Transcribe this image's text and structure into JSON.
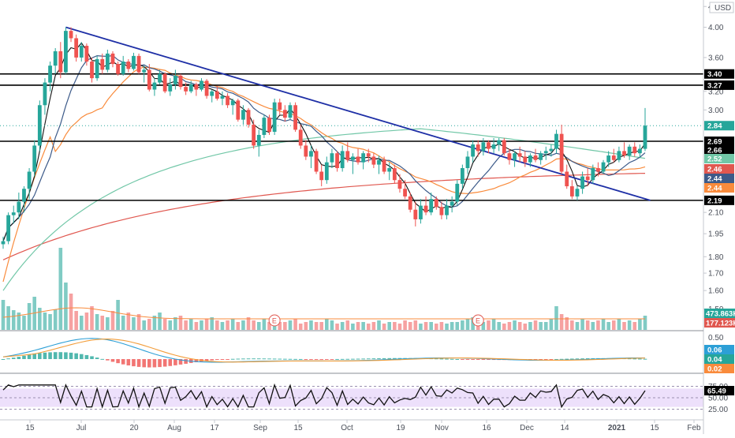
{
  "currency": "USD",
  "colors": {
    "up": "#26a69a",
    "down": "#ef5350",
    "vol_up": "#80cbc4",
    "vol_down": "#f6a1a1",
    "ma_dark": "#3c5a89",
    "ma_orange": "#f98b3c",
    "ma_red": "#e0574f",
    "ma_green": "#71c7a7",
    "ma_black": "#111111",
    "trendline": "#1e2fa6",
    "rsi_band": "#ede0fb",
    "macd_line": "#2c9fd6",
    "signal_line": "#f29d3a"
  },
  "chart_data": {
    "type": "candlestick",
    "panels": {
      "price": {
        "y_ticks": [
          "4.",
          "4.00",
          "3.60",
          "3.20",
          "3.00",
          "2.10",
          "1.95",
          "1.80",
          "1.70",
          "1.60",
          "1.50"
        ],
        "price_tags": [
          {
            "label": "3.40",
            "value": 3.4,
            "style": "black"
          },
          {
            "label": "3.27",
            "value": 3.27,
            "style": "black"
          },
          {
            "label": "2.84",
            "value": 2.84,
            "style": "up"
          },
          {
            "label": "2.69",
            "value": 2.69,
            "style": "black"
          },
          {
            "label": "2.66",
            "value": 2.66,
            "style": "black"
          },
          {
            "label": "2.52",
            "value": 2.52,
            "style": "green"
          },
          {
            "label": "2.46",
            "value": 2.46,
            "style": "red"
          },
          {
            "label": "2.44",
            "value": 2.44,
            "style": "navy"
          },
          {
            "label": "2.44",
            "value": 2.44,
            "style": "orange"
          },
          {
            "label": "2.19",
            "value": 2.19,
            "style": "black"
          }
        ],
        "horizontal_levels": [
          3.4,
          3.27,
          2.69,
          2.19
        ],
        "trendline": {
          "from": {
            "bar": 12,
            "price": 4.0
          },
          "to": {
            "bar": 124,
            "price": 2.19
          }
        },
        "candles": [
          [
            1.88,
            1.93,
            1.85,
            1.9
          ],
          [
            1.9,
            2.1,
            1.88,
            2.08
          ],
          [
            2.08,
            2.15,
            2.02,
            2.1
          ],
          [
            2.1,
            2.25,
            2.05,
            2.18
          ],
          [
            2.18,
            2.3,
            2.1,
            2.28
          ],
          [
            2.28,
            2.45,
            2.2,
            2.42
          ],
          [
            2.42,
            2.7,
            2.38,
            2.65
          ],
          [
            2.65,
            3.1,
            2.6,
            3.05
          ],
          [
            3.05,
            3.35,
            2.95,
            3.3
          ],
          [
            3.3,
            3.55,
            3.2,
            3.5
          ],
          [
            3.5,
            3.72,
            3.4,
            3.68
          ],
          [
            3.68,
            3.8,
            3.35,
            3.42
          ],
          [
            3.42,
            4.0,
            3.4,
            3.95
          ],
          [
            3.95,
            4.0,
            3.8,
            3.85
          ],
          [
            3.85,
            3.9,
            3.55,
            3.6
          ],
          [
            3.6,
            3.8,
            3.55,
            3.75
          ],
          [
            3.75,
            3.78,
            3.5,
            3.55
          ],
          [
            3.55,
            3.6,
            3.3,
            3.35
          ],
          [
            3.35,
            3.62,
            3.32,
            3.58
          ],
          [
            3.58,
            3.65,
            3.4,
            3.45
          ],
          [
            3.45,
            3.7,
            3.42,
            3.65
          ],
          [
            3.65,
            3.68,
            3.48,
            3.52
          ],
          [
            3.52,
            3.55,
            3.38,
            3.4
          ],
          [
            3.4,
            3.62,
            3.38,
            3.55
          ],
          [
            3.55,
            3.58,
            3.42,
            3.46
          ],
          [
            3.46,
            3.66,
            3.44,
            3.62
          ],
          [
            3.62,
            3.65,
            3.4,
            3.42
          ],
          [
            3.42,
            3.5,
            3.3,
            3.45
          ],
          [
            3.45,
            3.52,
            3.2,
            3.22
          ],
          [
            3.22,
            3.35,
            3.15,
            3.3
          ],
          [
            3.3,
            3.45,
            3.28,
            3.4
          ],
          [
            3.4,
            3.42,
            3.18,
            3.2
          ],
          [
            3.2,
            3.35,
            3.15,
            3.28
          ],
          [
            3.28,
            3.45,
            3.22,
            3.38
          ],
          [
            3.38,
            3.4,
            3.22,
            3.25
          ],
          [
            3.25,
            3.3,
            3.16,
            3.2
          ],
          [
            3.2,
            3.32,
            3.18,
            3.28
          ],
          [
            3.28,
            3.3,
            3.15,
            3.22
          ],
          [
            3.22,
            3.35,
            3.2,
            3.32
          ],
          [
            3.32,
            3.34,
            3.12,
            3.15
          ],
          [
            3.15,
            3.22,
            3.08,
            3.2
          ],
          [
            3.2,
            3.26,
            3.1,
            3.12
          ],
          [
            3.12,
            3.2,
            3.05,
            3.15
          ],
          [
            3.15,
            3.18,
            3.02,
            3.05
          ],
          [
            3.05,
            3.12,
            2.95,
            3.1
          ],
          [
            3.1,
            3.12,
            2.88,
            2.9
          ],
          [
            2.9,
            3.05,
            2.85,
            3.0
          ],
          [
            3.0,
            3.02,
            2.82,
            2.85
          ],
          [
            2.85,
            2.9,
            2.62,
            2.65
          ],
          [
            2.65,
            2.8,
            2.55,
            2.75
          ],
          [
            2.75,
            2.95,
            2.72,
            2.92
          ],
          [
            2.92,
            2.95,
            2.75,
            2.78
          ],
          [
            2.78,
            3.12,
            2.75,
            3.08
          ],
          [
            3.08,
            3.12,
            2.95,
            3.0
          ],
          [
            3.0,
            3.05,
            2.88,
            2.92
          ],
          [
            2.92,
            3.08,
            2.9,
            3.05
          ],
          [
            3.05,
            3.08,
            2.78,
            2.8
          ],
          [
            2.8,
            2.85,
            2.62,
            2.65
          ],
          [
            2.65,
            2.7,
            2.52,
            2.55
          ],
          [
            2.55,
            2.65,
            2.45,
            2.6
          ],
          [
            2.6,
            2.62,
            2.4,
            2.42
          ],
          [
            2.42,
            2.48,
            2.3,
            2.35
          ],
          [
            2.35,
            2.55,
            2.32,
            2.5
          ],
          [
            2.5,
            2.62,
            2.45,
            2.58
          ],
          [
            2.58,
            2.6,
            2.42,
            2.45
          ],
          [
            2.45,
            2.65,
            2.42,
            2.6
          ],
          [
            2.6,
            2.68,
            2.5,
            2.52
          ],
          [
            2.52,
            2.58,
            2.4,
            2.55
          ],
          [
            2.55,
            2.62,
            2.48,
            2.5
          ],
          [
            2.5,
            2.6,
            2.44,
            2.58
          ],
          [
            2.58,
            2.62,
            2.5,
            2.55
          ],
          [
            2.55,
            2.58,
            2.45,
            2.48
          ],
          [
            2.48,
            2.56,
            2.4,
            2.52
          ],
          [
            2.52,
            2.55,
            2.4,
            2.42
          ],
          [
            2.42,
            2.5,
            2.35,
            2.45
          ],
          [
            2.45,
            2.48,
            2.32,
            2.35
          ],
          [
            2.35,
            2.4,
            2.25,
            2.28
          ],
          [
            2.28,
            2.35,
            2.2,
            2.22
          ],
          [
            2.22,
            2.25,
            2.1,
            2.12
          ],
          [
            2.12,
            2.18,
            2.0,
            2.05
          ],
          [
            2.05,
            2.2,
            2.02,
            2.15
          ],
          [
            2.15,
            2.22,
            2.08,
            2.1
          ],
          [
            2.1,
            2.25,
            2.08,
            2.2
          ],
          [
            2.2,
            2.22,
            2.12,
            2.14
          ],
          [
            2.14,
            2.18,
            2.05,
            2.08
          ],
          [
            2.08,
            2.2,
            2.05,
            2.15
          ],
          [
            2.15,
            2.22,
            2.1,
            2.18
          ],
          [
            2.18,
            2.35,
            2.15,
            2.32
          ],
          [
            2.32,
            2.48,
            2.28,
            2.45
          ],
          [
            2.45,
            2.6,
            2.4,
            2.55
          ],
          [
            2.55,
            2.7,
            2.5,
            2.66
          ],
          [
            2.66,
            2.7,
            2.55,
            2.6
          ],
          [
            2.6,
            2.72,
            2.56,
            2.68
          ],
          [
            2.68,
            2.7,
            2.58,
            2.62
          ],
          [
            2.62,
            2.72,
            2.58,
            2.66
          ],
          [
            2.66,
            2.72,
            2.6,
            2.7
          ],
          [
            2.7,
            2.72,
            2.56,
            2.58
          ],
          [
            2.58,
            2.62,
            2.48,
            2.52
          ],
          [
            2.52,
            2.6,
            2.46,
            2.58
          ],
          [
            2.58,
            2.64,
            2.5,
            2.55
          ],
          [
            2.55,
            2.6,
            2.46,
            2.5
          ],
          [
            2.5,
            2.58,
            2.46,
            2.56
          ],
          [
            2.56,
            2.62,
            2.5,
            2.52
          ],
          [
            2.52,
            2.6,
            2.48,
            2.58
          ],
          [
            2.58,
            2.64,
            2.52,
            2.6
          ],
          [
            2.6,
            2.66,
            2.55,
            2.62
          ],
          [
            2.62,
            2.8,
            2.58,
            2.76
          ],
          [
            2.76,
            2.85,
            2.4,
            2.42
          ],
          [
            2.42,
            2.48,
            2.28,
            2.3
          ],
          [
            2.3,
            2.35,
            2.2,
            2.22
          ],
          [
            2.22,
            2.3,
            2.19,
            2.28
          ],
          [
            2.28,
            2.42,
            2.24,
            2.38
          ],
          [
            2.38,
            2.45,
            2.3,
            2.35
          ],
          [
            2.35,
            2.48,
            2.32,
            2.45
          ],
          [
            2.45,
            2.5,
            2.38,
            2.42
          ],
          [
            2.42,
            2.52,
            2.4,
            2.5
          ],
          [
            2.5,
            2.6,
            2.46,
            2.56
          ],
          [
            2.56,
            2.62,
            2.5,
            2.52
          ],
          [
            2.52,
            2.64,
            2.5,
            2.6
          ],
          [
            2.6,
            2.68,
            2.54,
            2.56
          ],
          [
            2.56,
            2.66,
            2.52,
            2.64
          ],
          [
            2.64,
            2.68,
            2.55,
            2.58
          ],
          [
            2.58,
            2.66,
            2.54,
            2.62
          ],
          [
            2.62,
            3.02,
            2.6,
            2.84
          ]
        ]
      },
      "volume": {
        "y_ticks": [],
        "tags": [
          {
            "label": "473.863K",
            "style": "up"
          },
          {
            "label": "177.123K",
            "style": "red"
          }
        ],
        "earnings_markers": [
          "E",
          "E"
        ]
      },
      "macd": {
        "y_ticks": [
          "0.50",
          "0.06",
          "0.04",
          "0.02"
        ],
        "tags": [
          {
            "label": "0.06",
            "style": "blue"
          },
          {
            "label": "0.04",
            "style": "up"
          },
          {
            "label": "0.02",
            "style": "orange"
          }
        ]
      },
      "rsi": {
        "y_ticks": [
          "75.00",
          "50.00",
          "25.00"
        ],
        "value_tag": "65.49",
        "band": [
          30,
          70
        ]
      }
    },
    "x_ticks": [
      "15",
      "Jul",
      "20",
      "Aug",
      "17",
      "Sep",
      "15",
      "Oct",
      "19",
      "Nov",
      "16",
      "Dec",
      "14",
      "2021",
      "15",
      "Feb"
    ]
  }
}
